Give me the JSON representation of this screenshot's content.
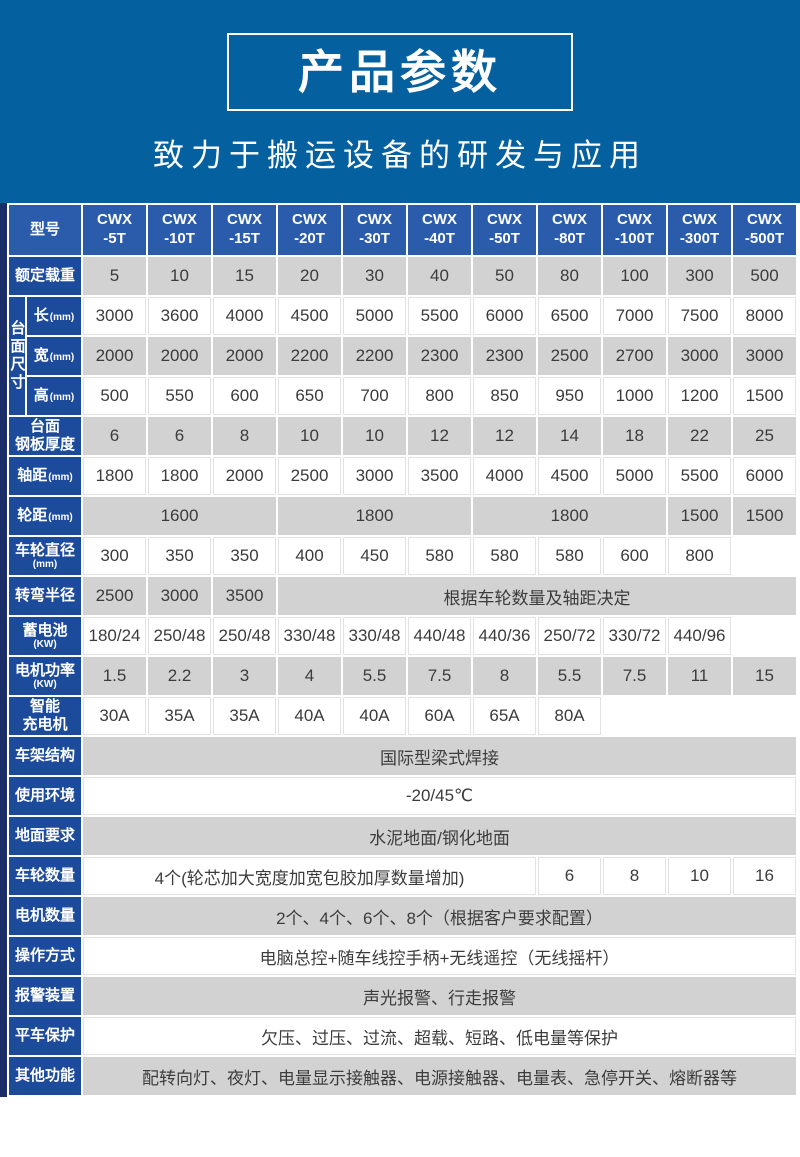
{
  "banner": {
    "title": "产品参数",
    "subtitle": "致力于搬运设备的研发与应用"
  },
  "colors": {
    "banner_blue": "#0560a0",
    "header_blue": "#2b5cab",
    "label_blue": "#1c4b9b",
    "navy_edge": "#1b2d66",
    "gray_cell": "#d2d2d2",
    "text_dark": "#3c3c3c"
  },
  "table": {
    "header": {
      "label": "型号",
      "models": [
        {
          "line1": "CWX",
          "line2": "-5T"
        },
        {
          "line1": "CWX",
          "line2": "-10T"
        },
        {
          "line1": "CWX",
          "line2": "-15T"
        },
        {
          "line1": "CWX",
          "line2": "-20T"
        },
        {
          "line1": "CWX",
          "line2": "-30T"
        },
        {
          "line1": "CWX",
          "line2": "-40T"
        },
        {
          "line1": "CWX",
          "line2": "-50T"
        },
        {
          "line1": "CWX",
          "line2": "-80T"
        },
        {
          "line1": "CWX",
          "line2": "-100T"
        },
        {
          "line1": "CWX",
          "line2": "-300T"
        },
        {
          "line1": "CWX",
          "line2": "-500T"
        }
      ]
    },
    "rows": [
      {
        "label": {
          "text": "额定载重"
        },
        "shade": "gray",
        "cells": [
          "5",
          "10",
          "15",
          "20",
          "30",
          "40",
          "50",
          "80",
          "100",
          "300",
          "500"
        ]
      },
      {
        "group": {
          "text": "台面尺寸",
          "rowspan": 3
        },
        "label": {
          "text": "长",
          "unit": "(mm)",
          "unit_inline": true
        },
        "shade": "white",
        "cells": [
          "3000",
          "3600",
          "4000",
          "4500",
          "5000",
          "5500",
          "6000",
          "6500",
          "7000",
          "7500",
          "8000"
        ]
      },
      {
        "sub": true,
        "label": {
          "text": "宽",
          "unit": "(mm)",
          "unit_inline": true
        },
        "shade": "gray",
        "cells": [
          "2000",
          "2000",
          "2000",
          "2200",
          "2200",
          "2300",
          "2300",
          "2500",
          "2700",
          "3000",
          "3000"
        ]
      },
      {
        "sub": true,
        "label": {
          "text": "高",
          "unit": "(mm)",
          "unit_inline": true
        },
        "shade": "white",
        "cells": [
          "500",
          "550",
          "600",
          "650",
          "700",
          "800",
          "850",
          "950",
          "1000",
          "1200",
          "1500"
        ]
      },
      {
        "label": {
          "text": "台面\n钢板厚度"
        },
        "shade": "gray",
        "cells": [
          "6",
          "6",
          "8",
          "10",
          "10",
          "12",
          "12",
          "14",
          "18",
          "22",
          "25"
        ]
      },
      {
        "label": {
          "text": "轴距",
          "unit": "(mm)",
          "unit_inline": true
        },
        "shade": "white",
        "cells": [
          "1800",
          "1800",
          "2000",
          "2500",
          "3000",
          "3500",
          "4000",
          "4500",
          "5000",
          "5500",
          "6000"
        ]
      },
      {
        "label": {
          "text": "轮距",
          "unit": "(mm)",
          "unit_inline": true
        },
        "shade": "gray",
        "cells": [
          {
            "t": "1600",
            "span": 3
          },
          {
            "t": "1800",
            "span": 3
          },
          {
            "t": "1800",
            "span": 3
          },
          "1500",
          "1500"
        ]
      },
      {
        "label": {
          "text": "车轮直径",
          "unit": "(mm)",
          "unit_inline": false
        },
        "shade": "white",
        "cells": [
          "300",
          "350",
          "350",
          "400",
          "450",
          "580",
          "580",
          "580",
          "600",
          "800",
          {
            "t": "",
            "empty": true
          }
        ]
      },
      {
        "label": {
          "text": "转弯半径"
        },
        "shade": "gray",
        "cells": [
          "2500",
          "3000",
          "3500",
          {
            "t": "根据车轮数量及轴距决定",
            "span": 8
          }
        ]
      },
      {
        "label": {
          "text": "蓄电池",
          "unit": "(KW)",
          "unit_inline": false
        },
        "shade": "white",
        "cells": [
          "180/24",
          "250/48",
          "250/48",
          "330/48",
          "330/48",
          "440/48",
          "440/36",
          "250/72",
          "330/72",
          "440/96",
          {
            "t": "",
            "empty": true
          }
        ]
      },
      {
        "label": {
          "text": "电机功率",
          "unit": "(KW)",
          "unit_inline": false
        },
        "shade": "gray",
        "cells": [
          "1.5",
          "2.2",
          "3",
          "4",
          "5.5",
          "7.5",
          "8",
          "5.5",
          "7.5",
          "11",
          "15"
        ]
      },
      {
        "label": {
          "text": "智能\n充电机"
        },
        "shade": "white",
        "cells": [
          "30A",
          "35A",
          "35A",
          "40A",
          "40A",
          "60A",
          "65A",
          "80A",
          {
            "t": "",
            "empty": true
          },
          {
            "t": "",
            "empty": true
          },
          {
            "t": "",
            "empty": true
          }
        ]
      },
      {
        "label": {
          "text": "车架结构"
        },
        "shade": "gray",
        "cells": [
          {
            "t": "国际型梁式焊接",
            "span": 11
          }
        ]
      },
      {
        "label": {
          "text": "使用环境"
        },
        "shade": "white",
        "cells": [
          {
            "t": "-20/45℃",
            "span": 11
          }
        ]
      },
      {
        "label": {
          "text": "地面要求"
        },
        "shade": "gray",
        "cells": [
          {
            "t": "水泥地面/钢化地面",
            "span": 11
          }
        ]
      },
      {
        "label": {
          "text": "车轮数量"
        },
        "shade": "white",
        "cells": [
          {
            "t": "4个(轮芯加大宽度加宽包胶加厚数量增加)",
            "span": 7
          },
          "6",
          "8",
          "10",
          "16"
        ]
      },
      {
        "label": {
          "text": "电机数量"
        },
        "shade": "gray",
        "cells": [
          {
            "t": "2个、4个、6个、8个（根据客户要求配置）",
            "span": 11
          }
        ]
      },
      {
        "label": {
          "text": "操作方式"
        },
        "shade": "white",
        "cells": [
          {
            "t": "电脑总控+随车线控手柄+无线遥控（无线摇杆）",
            "span": 11
          }
        ]
      },
      {
        "label": {
          "text": "报警装置"
        },
        "shade": "gray",
        "cells": [
          {
            "t": "声光报警、行走报警",
            "span": 11
          }
        ]
      },
      {
        "label": {
          "text": "平车保护"
        },
        "shade": "white",
        "cells": [
          {
            "t": "欠压、过压、过流、超载、短路、低电量等保护",
            "span": 11
          }
        ]
      },
      {
        "label": {
          "text": "其他功能"
        },
        "shade": "gray",
        "cells": [
          {
            "t": "配转向灯、夜灯、电量显示接触器、电源接触器、电量表、急停开关、熔断器等",
            "span": 11
          }
        ]
      }
    ]
  }
}
